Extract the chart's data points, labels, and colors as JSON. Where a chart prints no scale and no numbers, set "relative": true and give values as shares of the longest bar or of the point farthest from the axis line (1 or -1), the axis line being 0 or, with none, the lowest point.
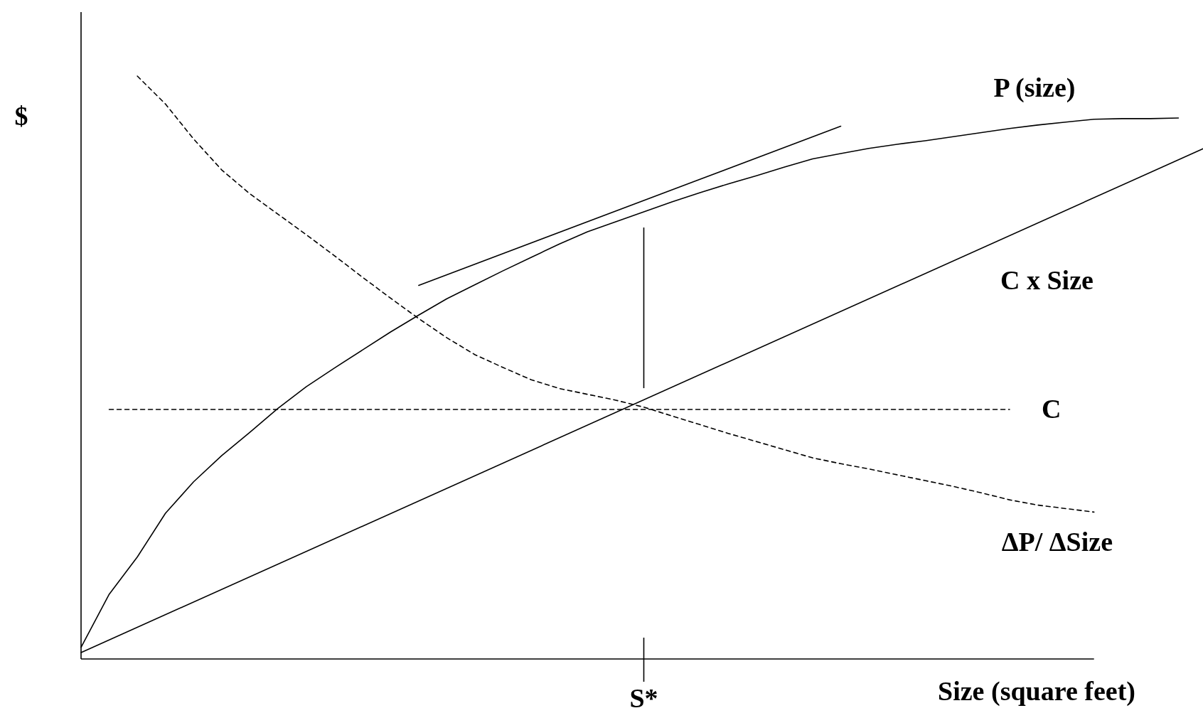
{
  "chart_data": {
    "type": "line",
    "relative": true,
    "xlabel": "Size (square feet)",
    "ylabel": "$",
    "marker": "none",
    "annotations": [
      "S*"
    ],
    "categories": [
      null,
      null,
      null,
      null,
      null,
      null,
      null,
      null,
      null,
      null,
      null,
      null,
      null,
      null,
      null,
      null,
      null,
      null,
      null,
      null,
      null,
      null,
      null,
      null,
      null,
      null,
      null,
      null,
      null,
      null,
      null,
      null,
      null,
      null,
      null,
      null,
      null,
      null,
      null,
      null,
      null
    ],
    "series": [
      {
        "name": "P (size)",
        "color": "#000000",
        "line_style": "solid",
        "values": [
          0.02,
          0.111,
          0.175,
          0.25,
          0.304,
          0.349,
          0.389,
          0.43,
          0.467,
          0.499,
          0.53,
          0.561,
          0.59,
          0.618,
          0.642,
          0.666,
          0.689,
          0.712,
          0.733,
          0.75,
          0.767,
          0.784,
          0.8,
          0.815,
          0.829,
          0.844,
          0.858,
          0.867,
          0.876,
          0.883,
          0.889,
          0.896,
          0.903,
          0.91,
          0.916,
          0.921,
          0.926,
          0.927,
          0.927,
          0.928,
          null
        ]
      },
      {
        "name": "C x Size",
        "color": "#000000",
        "line_style": "solid",
        "values": [
          0.011,
          null,
          null,
          null,
          null,
          null,
          null,
          null,
          null,
          null,
          null,
          null,
          null,
          null,
          null,
          null,
          null,
          null,
          null,
          null,
          null,
          null,
          null,
          null,
          null,
          null,
          null,
          null,
          null,
          null,
          null,
          null,
          null,
          null,
          null,
          null,
          null,
          null,
          null,
          null,
          0.878
        ]
      },
      {
        "name": "C",
        "color": "#000000",
        "line_style": "dashed",
        "values": [
          null,
          0.428,
          0.428,
          0.428,
          0.428,
          0.428,
          0.428,
          0.428,
          0.428,
          0.428,
          0.428,
          0.428,
          0.428,
          0.428,
          0.428,
          0.428,
          0.428,
          0.428,
          0.428,
          0.428,
          0.428,
          0.428,
          0.428,
          0.428,
          0.428,
          0.428,
          0.428,
          0.428,
          0.428,
          0.428,
          0.428,
          0.428,
          0.428,
          0.428,
          null,
          null,
          null,
          null,
          null,
          null,
          null
        ]
      },
      {
        "name": "ΔP/ ΔSize",
        "color": "#000000",
        "line_style": "dashed",
        "values": [
          null,
          null,
          1.0,
          0.952,
          0.892,
          0.839,
          0.798,
          0.763,
          0.728,
          0.692,
          0.655,
          0.619,
          0.584,
          0.551,
          0.522,
          0.5,
          0.479,
          0.464,
          0.454,
          0.444,
          0.432,
          0.417,
          0.402,
          0.387,
          0.373,
          0.359,
          0.345,
          0.335,
          0.326,
          0.316,
          0.306,
          0.296,
          0.285,
          0.273,
          0.264,
          0.258,
          0.252,
          null,
          null,
          null,
          null
        ]
      },
      {
        "color": "#000000",
        "line_style": "solid",
        "values": [
          null,
          null,
          null,
          null,
          null,
          null,
          null,
          null,
          null,
          null,
          null,
          null,
          0.641,
          null,
          null,
          null,
          null,
          null,
          null,
          null,
          null,
          null,
          null,
          null,
          null,
          null,
          null,
          0.914,
          null,
          null,
          null,
          null,
          null,
          null,
          null,
          null,
          null,
          null,
          null,
          null,
          null
        ]
      }
    ]
  }
}
